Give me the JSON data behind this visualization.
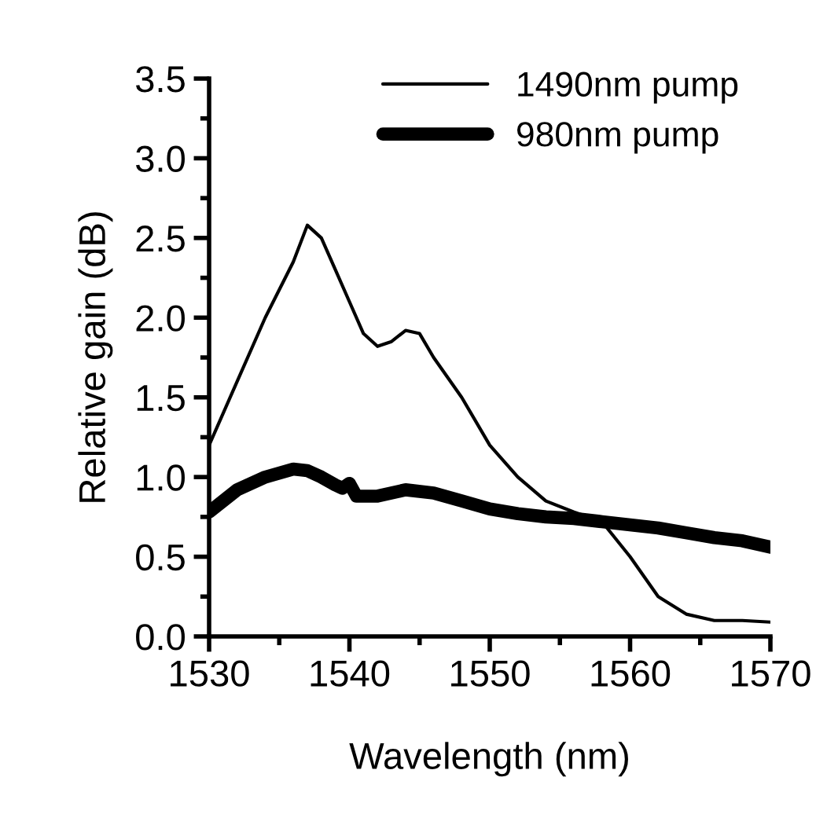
{
  "chart_data": {
    "type": "line",
    "xlabel": "Wavelength (nm)",
    "ylabel": "Relative gain (dB)",
    "xlim": [
      1530,
      1570
    ],
    "xticks": [
      1530,
      1540,
      1550,
      1560,
      1570
    ],
    "ylim": [
      0,
      3.5
    ],
    "yticks": [
      {
        "value": 0,
        "label": "0.0"
      },
      {
        "value": 0.5,
        "label": "0.5"
      },
      {
        "value": 1,
        "label": "1.0"
      },
      {
        "value": 1.5,
        "label": "1.5"
      },
      {
        "value": 2,
        "label": "2.0"
      },
      {
        "value": 2.5,
        "label": "2.5"
      },
      {
        "value": 3,
        "label": "3.0"
      },
      {
        "value": 3.5,
        "label": "3.5"
      }
    ],
    "grid": false,
    "legend": "top right",
    "marker": "none",
    "line_style": "solid",
    "series": [
      {
        "name": "1490nm pump",
        "color": "#000000",
        "x": [
          1530,
          1532,
          1534,
          1536,
          1537,
          1538,
          1539,
          1540,
          1541,
          1542,
          1543,
          1544,
          1545,
          1546,
          1548,
          1550,
          1552,
          1554,
          1556,
          1558,
          1560,
          1562,
          1564,
          1566,
          1568,
          1570
        ],
        "values": [
          1.2,
          1.6,
          2.0,
          2.35,
          2.58,
          2.5,
          2.3,
          2.1,
          1.9,
          1.82,
          1.85,
          1.92,
          1.9,
          1.75,
          1.5,
          1.2,
          1.0,
          0.85,
          0.78,
          0.72,
          0.5,
          0.25,
          0.14,
          0.1,
          0.1,
          0.09
        ]
      },
      {
        "name": "980nm pump",
        "color": "#000000",
        "x": [
          1530,
          1532,
          1534,
          1536,
          1537,
          1538,
          1539,
          1539.5,
          1540,
          1540.5,
          1542,
          1544,
          1546,
          1548,
          1550,
          1552,
          1554,
          1556,
          1558,
          1560,
          1562,
          1564,
          1566,
          1568,
          1570
        ],
        "values": [
          0.78,
          0.92,
          1.0,
          1.05,
          1.04,
          1.0,
          0.95,
          0.93,
          0.96,
          0.88,
          0.88,
          0.92,
          0.9,
          0.85,
          0.8,
          0.77,
          0.75,
          0.74,
          0.72,
          0.7,
          0.68,
          0.65,
          0.62,
          0.6,
          0.56
        ]
      }
    ]
  }
}
